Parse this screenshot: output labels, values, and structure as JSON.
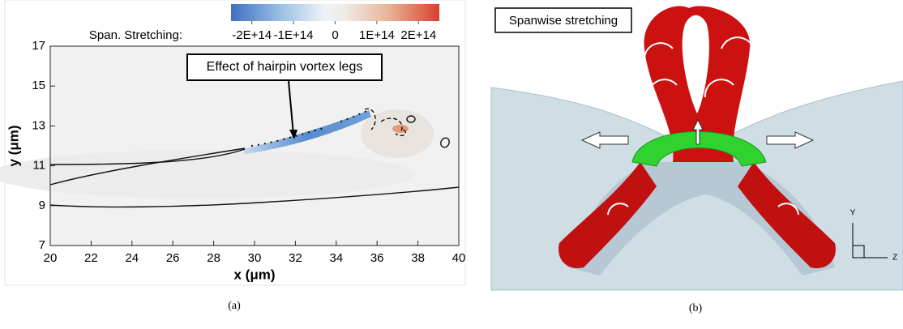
{
  "panel_a": {
    "colorbar": {
      "label": "Span. Stretching:",
      "lim": [
        -250000000000000,
        250000000000000
      ],
      "ticks": [
        {
          "value": -200000000000000,
          "label": "-2E+14"
        },
        {
          "value": -100000000000000,
          "label": "-1E+14"
        },
        0,
        {
          "value": 100000000000000,
          "label": "1E+14"
        },
        {
          "value": 200000000000000,
          "label": "2E+14"
        }
      ]
    },
    "xlim": [
      20,
      40
    ],
    "xticks": [
      20,
      22,
      24,
      26,
      28,
      30,
      32,
      34,
      36,
      38,
      40
    ],
    "ylim": [
      7,
      17
    ],
    "yticks": [
      7,
      9,
      11,
      13,
      15,
      17
    ],
    "xlabel": "x (μm)",
    "ylabel": "y (μm)",
    "annotation": "Effect of hairpin vortex legs",
    "caption": "(a)"
  },
  "panel_b": {
    "title": "Spanwise stretching",
    "axis_y": "Y",
    "axis_z": "Z",
    "caption": "(b)"
  }
}
